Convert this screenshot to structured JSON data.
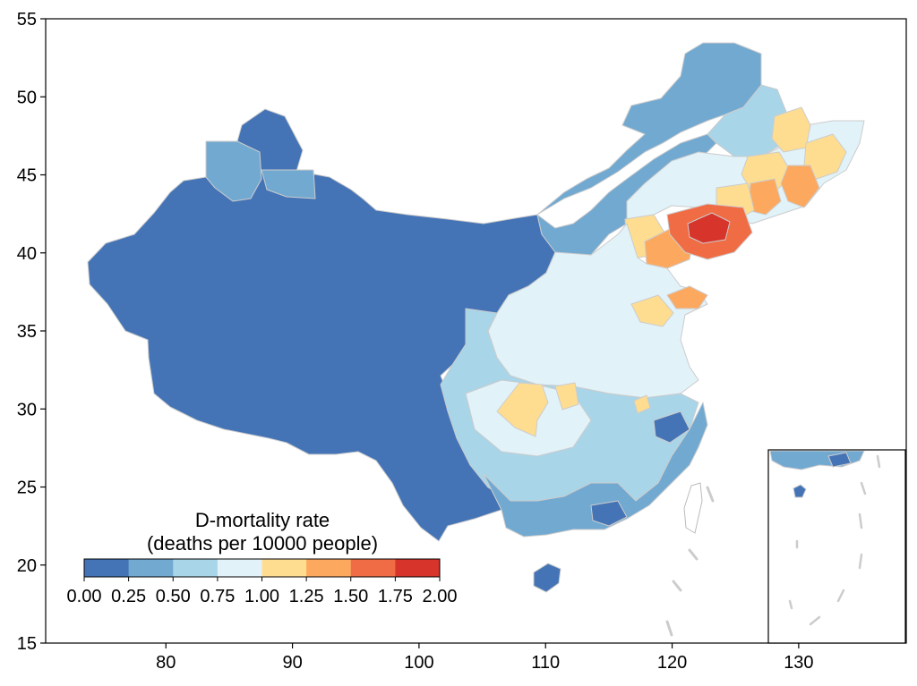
{
  "map": {
    "x_ticks": [
      "80",
      "90",
      "100",
      "110",
      "120",
      "130"
    ],
    "y_ticks": [
      "15",
      "20",
      "25",
      "30",
      "35",
      "40",
      "45",
      "50",
      "55"
    ],
    "x_range": [
      70.5,
      138.5
    ],
    "y_range": [
      15,
      55
    ]
  },
  "colorbar": {
    "title_line1": "D-mortality rate",
    "title_line2": "(deaths per 10000 people)",
    "labels": [
      "0.00",
      "0.25",
      "0.50",
      "0.75",
      "1.00",
      "1.25",
      "1.50",
      "1.75",
      "2.00"
    ],
    "colors": [
      "#4474b6",
      "#72a9d1",
      "#a8d5e8",
      "#e1f2f8",
      "#fedd90",
      "#fca95f",
      "#f06c45",
      "#d7342b"
    ]
  },
  "colors": {
    "border": "#cccccc",
    "frame": "#000000"
  }
}
